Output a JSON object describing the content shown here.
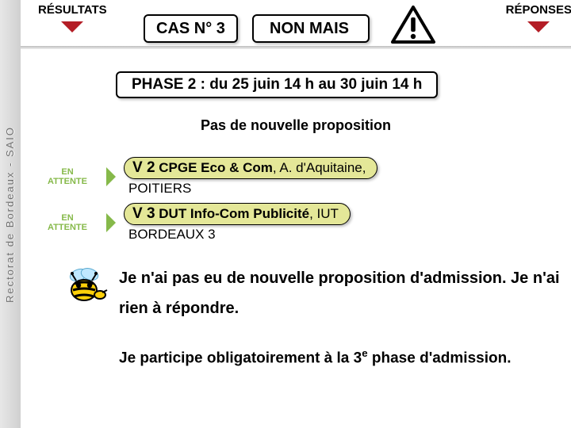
{
  "colors": {
    "accent_red": "#b41d26",
    "accent_green": "#86b94a",
    "pill_bg": "#e4e798",
    "bee_yellow": "#ffd109",
    "bee_black": "#1a1a1a",
    "bee_wing": "#bfe8ff"
  },
  "sidebar_label": "Rectorat de Bordeaux - SAIO",
  "top": {
    "left_label": "RÉSULTATS",
    "right_label": "RÉPONSES",
    "cas": "CAS N° 3",
    "status": "NON MAIS"
  },
  "phase": "PHASE 2 : du 25 juin 14 h au 30 juin 14 h",
  "subtitle": "Pas de nouvelle proposition",
  "wishes": [
    {
      "badge": "EN ATTENTE",
      "vnum": "V 2",
      "title": "CPGE Eco & Com",
      "tail": ", A. d'Aquitaine,",
      "sub": "POITIERS"
    },
    {
      "badge": "EN ATTENTE",
      "vnum": "V 3",
      "title": "DUT Info-Com Publicité",
      "tail": ", IUT",
      "sub": "BORDEAUX 3"
    }
  ],
  "messages": {
    "line1": "Je n'ai pas eu de nouvelle proposition d'admission. Je n'ai rien à répondre.",
    "line2_pre": "Je participe obligatoirement à la 3",
    "line2_sup": "e",
    "line2_post": " phase d'admission."
  }
}
